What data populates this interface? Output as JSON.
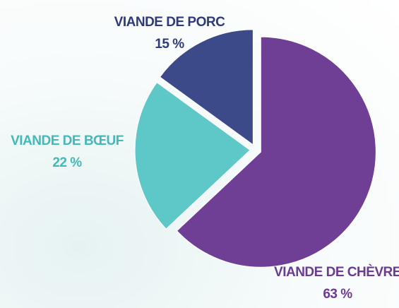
{
  "chart_data": {
    "type": "pie",
    "categories": [
      "VIANDE DE CHÈVRE",
      "VIANDE DE BŒUF",
      "VIANDE DE PORC"
    ],
    "values": [
      63,
      22,
      15
    ],
    "value_labels": [
      "63 %",
      "22 %",
      "15 %"
    ],
    "colors": [
      "#6f3f96",
      "#5ec8c8",
      "#3d4a8a"
    ],
    "label_colors": [
      "#6b3a93",
      "#45b8b8",
      "#2e3a7a"
    ]
  }
}
